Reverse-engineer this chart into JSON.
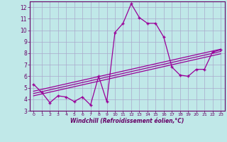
{
  "xlabel": "Windchill (Refroidissement éolien,°C)",
  "ylabel": "",
  "xlim": [
    -0.5,
    23.5
  ],
  "ylim": [
    3,
    12.5
  ],
  "yticks": [
    3,
    4,
    5,
    6,
    7,
    8,
    9,
    10,
    11,
    12
  ],
  "xticks": [
    0,
    1,
    2,
    3,
    4,
    5,
    6,
    7,
    8,
    9,
    10,
    11,
    12,
    13,
    14,
    15,
    16,
    17,
    18,
    19,
    20,
    21,
    22,
    23
  ],
  "background_color": "#c0e8e8",
  "grid_color": "#aaaacc",
  "line_color": "#990099",
  "line1_x": [
    0,
    1,
    2,
    3,
    4,
    5,
    6,
    7,
    8,
    9,
    10,
    11,
    12,
    13,
    14,
    15,
    16,
    17,
    18,
    19,
    20,
    21,
    22,
    23
  ],
  "line1_y": [
    5.3,
    4.6,
    3.7,
    4.3,
    4.2,
    3.8,
    4.2,
    3.5,
    6.0,
    3.8,
    9.8,
    10.6,
    12.3,
    11.1,
    10.6,
    10.6,
    9.4,
    6.8,
    6.1,
    6.0,
    6.6,
    6.6,
    8.1,
    8.3
  ],
  "line2_x": [
    0,
    23
  ],
  "line2_y": [
    4.7,
    8.35
  ],
  "line3_x": [
    0,
    23
  ],
  "line3_y": [
    4.5,
    8.15
  ],
  "line4_x": [
    0,
    23
  ],
  "line4_y": [
    4.3,
    7.95
  ]
}
